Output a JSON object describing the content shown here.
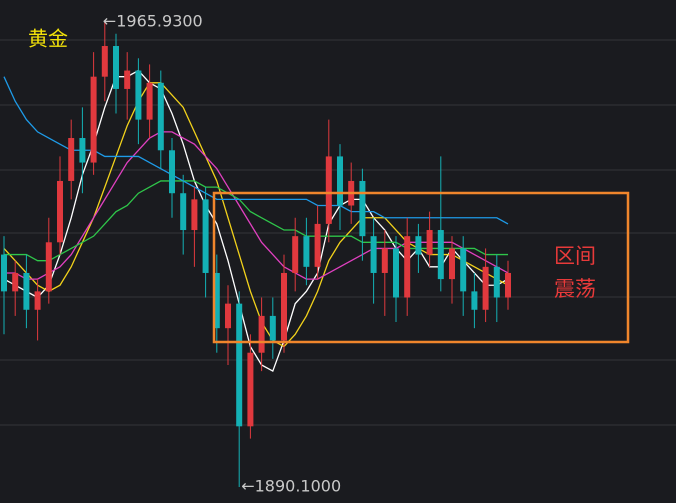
{
  "chart_data": {
    "type": "candlestick",
    "title": "黄金",
    "ylim": [
      1887.5,
      1969.5
    ],
    "up_color": "#e0393e",
    "down_color": "#14b1b5",
    "candles": {
      "open": [
        1928,
        1922,
        1925,
        1919,
        1922,
        1930,
        1940,
        1947,
        1943,
        1957,
        1962,
        1955,
        1958,
        1950,
        1956,
        1945,
        1938,
        1932,
        1937,
        1925,
        1916,
        1920,
        1900,
        1912,
        1918,
        1914,
        1925,
        1931,
        1926,
        1933,
        1944,
        1936,
        1940,
        1931,
        1925,
        1929,
        1921,
        1931,
        1928,
        1932,
        1924,
        1929,
        1922,
        1919,
        1926,
        1921
      ],
      "close": [
        1922,
        1925,
        1919,
        1922,
        1930,
        1940,
        1947,
        1943,
        1957,
        1962,
        1955,
        1958,
        1950,
        1956,
        1945,
        1938,
        1932,
        1937,
        1925,
        1916,
        1920,
        1900,
        1912,
        1918,
        1914,
        1925,
        1931,
        1926,
        1933,
        1944,
        1936,
        1940,
        1931,
        1925,
        1929,
        1921,
        1931,
        1928,
        1932,
        1924,
        1929,
        1922,
        1919,
        1926,
        1921,
        1925
      ],
      "high": [
        1931,
        1927,
        1928,
        1924,
        1934,
        1944,
        1950,
        1952,
        1961,
        1965.93,
        1964,
        1961,
        1960,
        1959,
        1958,
        1947,
        1941,
        1939,
        1939,
        1928,
        1923,
        1922,
        1915,
        1921,
        1921,
        1928,
        1934,
        1934,
        1936,
        1950,
        1946,
        1943,
        1942,
        1934,
        1932,
        1931,
        1934,
        1933,
        1935,
        1944,
        1931,
        1931,
        1925,
        1929,
        1928,
        1927
      ],
      "low": [
        1915,
        1918,
        1916,
        1914,
        1920,
        1928,
        1937,
        1938,
        1941,
        1953,
        1951,
        1950,
        1946,
        1947,
        1942,
        1934,
        1928,
        1926,
        1921,
        1912,
        1910,
        1890.1,
        1898,
        1909,
        1911,
        1912,
        1922,
        1923,
        1924,
        1930,
        1932,
        1933,
        1927,
        1920,
        1918,
        1917,
        1918,
        1925,
        1926,
        1922,
        1920,
        1918,
        1916,
        1917,
        1917,
        1919
      ]
    },
    "overlays": [
      {
        "color": "#ffffff",
        "values": [
          1924,
          1923,
          1922,
          1921,
          1923,
          1928,
          1934,
          1941,
          1946,
          1952,
          1957,
          1957,
          1958,
          1956,
          1955,
          1951,
          1946,
          1940,
          1936,
          1933,
          1927,
          1920,
          1913,
          1910,
          1909,
          1914,
          1920,
          1922,
          1925,
          1933,
          1936,
          1937,
          1937,
          1934,
          1932,
          1929,
          1927,
          1929,
          1926,
          1926,
          1929,
          1927,
          1925,
          1923,
          1923,
          1924
        ]
      },
      {
        "color": "#f2d21b",
        "values": [
          1929,
          1927,
          1925,
          1923,
          1922,
          1923,
          1926,
          1930,
          1934,
          1939,
          1944,
          1949,
          1953,
          1956,
          1956,
          1954,
          1952,
          1948,
          1944,
          1940,
          1934,
          1928,
          1922,
          1917,
          1914,
          1913,
          1915,
          1918,
          1922,
          1927,
          1930,
          1932,
          1934,
          1934,
          1934,
          1932,
          1930,
          1929,
          1928,
          1928,
          1928,
          1927,
          1926,
          1925,
          1924,
          1923
        ]
      },
      {
        "color": "#e040c0",
        "values": [
          1925,
          1925,
          1924,
          1924,
          1925,
          1926,
          1928,
          1931,
          1934,
          1937,
          1940,
          1943,
          1945,
          1947,
          1948,
          1948,
          1947,
          1946,
          1944,
          1942,
          1939,
          1936,
          1933,
          1930,
          1928,
          1926,
          1925,
          1924,
          1924,
          1925,
          1926,
          1927,
          1928,
          1929,
          1929,
          1929,
          1930,
          1930,
          1930,
          1930,
          1930,
          1929,
          1928,
          1927,
          1926,
          1925
        ]
      },
      {
        "color": "#2fc64a",
        "values": [
          1928,
          1928,
          1928,
          1927,
          1927,
          1928,
          1929,
          1930,
          1931,
          1933,
          1935,
          1936,
          1938,
          1939,
          1940,
          1940,
          1940,
          1940,
          1939,
          1939,
          1938,
          1937,
          1935,
          1934,
          1933,
          1932,
          1932,
          1931,
          1931,
          1931,
          1931,
          1931,
          1930,
          1930,
          1930,
          1930,
          1929,
          1929,
          1929,
          1929,
          1929,
          1929,
          1929,
          1928,
          1928,
          1928
        ]
      },
      {
        "color": "#1e9be8",
        "values": [
          1957,
          1953,
          1950,
          1948,
          1947,
          1946,
          1945,
          1945,
          1945,
          1944,
          1944,
          1944,
          1944,
          1943,
          1942,
          1941,
          1940,
          1939,
          1938,
          1937,
          1937,
          1937,
          1937,
          1937,
          1937,
          1937,
          1937,
          1937,
          1936,
          1936,
          1936,
          1935,
          1935,
          1935,
          1934,
          1934,
          1934,
          1934,
          1934,
          1934,
          1934,
          1934,
          1934,
          1934,
          1934,
          1933
        ]
      }
    ],
    "high_label": "←1965.9300",
    "low_label": "←1890.1000",
    "box_label": [
      "区间",
      "震荡"
    ]
  }
}
